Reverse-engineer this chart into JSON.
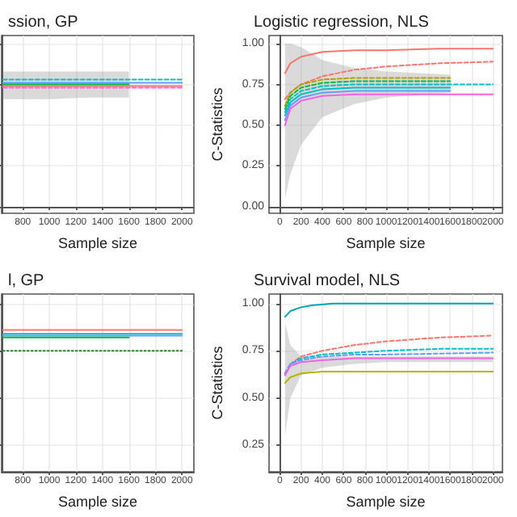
{
  "chart_data": [
    {
      "type": "line",
      "title": "ssion, GP",
      "xlabel": "Sample size",
      "xlim": [
        640,
        2090
      ],
      "xticks": [
        800,
        1000,
        1200,
        1400,
        1600,
        1800,
        2000
      ],
      "ylim": [
        -0.04,
        1.05
      ],
      "yticks": [
        0,
        0.25,
        0.5,
        0.75,
        1
      ],
      "tick_labels": "x",
      "grid": true,
      "series": [
        {
          "color": "#00bfc4",
          "line_style": "dashed",
          "x": [
            650,
            1000,
            1500,
            2000
          ],
          "values": [
            0.78,
            0.78,
            0.78,
            0.78
          ]
        },
        {
          "color": "#619cff",
          "x": [
            650,
            1000,
            1500,
            2000
          ],
          "values": [
            0.76,
            0.76,
            0.76,
            0.76
          ]
        },
        {
          "color": "#00ba38",
          "x": [
            650,
            1000,
            1300,
            1600
          ],
          "values": [
            0.75,
            0.75,
            0.75,
            0.75
          ],
          "lower": [
            0.66,
            0.66,
            0.67,
            0.67
          ],
          "upper": [
            0.83,
            0.83,
            0.83,
            0.83
          ]
        },
        {
          "color": "#f8766d",
          "x": [
            650,
            1000,
            1500,
            2000
          ],
          "values": [
            0.74,
            0.74,
            0.74,
            0.74
          ]
        },
        {
          "color": "#f564e3",
          "line_style": "dashed",
          "x": [
            650,
            1000,
            1500,
            2000
          ],
          "values": [
            0.73,
            0.73,
            0.73,
            0.73
          ]
        }
      ]
    },
    {
      "type": "line",
      "title": "Logistic regression, NLS",
      "xlabel": "Sample size",
      "ylabel": "C-Statistics",
      "xlim": [
        -100,
        2090
      ],
      "xticks": [
        0,
        200,
        400,
        600,
        800,
        1000,
        1200,
        1400,
        1600,
        1800,
        2000
      ],
      "ylim": [
        -0.04,
        1.05
      ],
      "yticks": [
        {
          "value": 0,
          "label": "0.00"
        },
        {
          "value": 0.25,
          "label": "0.25"
        },
        {
          "value": 0.5,
          "label": "0.50"
        },
        {
          "value": 0.75,
          "label": "0.75"
        },
        {
          "value": 1,
          "label": "1.00"
        }
      ],
      "grid": true,
      "series": [
        {
          "color": "#f8766d",
          "x": [
            50,
            100,
            200,
            400,
            700,
            1000,
            1500,
            2000
          ],
          "values": [
            0.82,
            0.88,
            0.92,
            0.95,
            0.96,
            0.96,
            0.97,
            0.97
          ]
        },
        {
          "color": "#f8766d",
          "line_style": "dashed",
          "x": [
            50,
            100,
            200,
            400,
            700,
            1000,
            1500,
            2000
          ],
          "values": [
            0.66,
            0.7,
            0.75,
            0.8,
            0.84,
            0.86,
            0.88,
            0.89
          ]
        },
        {
          "color": "#b79f00",
          "line_style": "dashed",
          "x": [
            50,
            100,
            200,
            400,
            700,
            1000,
            1600
          ],
          "values": [
            0.62,
            0.7,
            0.75,
            0.78,
            0.79,
            0.79,
            0.79
          ],
          "lower": [
            0.05,
            0.2,
            0.38,
            0.55,
            0.63,
            0.67,
            0.7
          ],
          "upper": [
            1.0,
            1.0,
            0.98,
            0.9,
            0.85,
            0.83,
            0.81
          ]
        },
        {
          "color": "#00ba38",
          "line_style": "dashed",
          "x": [
            50,
            100,
            200,
            400,
            700,
            1000,
            1600
          ],
          "values": [
            0.6,
            0.68,
            0.73,
            0.76,
            0.77,
            0.77,
            0.77
          ]
        },
        {
          "color": "#00bfc4",
          "line_style": "dashed",
          "x": [
            50,
            100,
            200,
            400,
            700,
            1000,
            2000
          ],
          "values": [
            0.58,
            0.66,
            0.71,
            0.74,
            0.75,
            0.75,
            0.75
          ]
        },
        {
          "color": "#00bfc4",
          "x": [
            50,
            100,
            200,
            400,
            700,
            1000,
            1600
          ],
          "values": [
            0.56,
            0.64,
            0.69,
            0.72,
            0.73,
            0.73,
            0.73
          ]
        },
        {
          "color": "#619cff",
          "x": [
            50,
            100,
            200,
            400,
            700,
            1000,
            1600
          ],
          "values": [
            0.53,
            0.62,
            0.67,
            0.7,
            0.71,
            0.71,
            0.71
          ]
        },
        {
          "color": "#f564e3",
          "x": [
            50,
            100,
            200,
            400,
            700,
            1000,
            2000
          ],
          "values": [
            0.5,
            0.6,
            0.65,
            0.68,
            0.69,
            0.69,
            0.69
          ]
        }
      ]
    },
    {
      "type": "line",
      "title": "l, GP",
      "xlabel": "Sample size",
      "xlim": [
        640,
        2090
      ],
      "xticks": [
        800,
        1000,
        1200,
        1400,
        1600,
        1800,
        2000
      ],
      "ylim": [
        0.11,
        1.05
      ],
      "yticks": [
        0.25,
        0.5,
        0.75,
        1
      ],
      "tick_labels": "x",
      "grid": true,
      "series": [
        {
          "color": "#f8766d",
          "x": [
            650,
            1000,
            1500,
            2000
          ],
          "values": [
            0.86,
            0.86,
            0.86,
            0.86
          ]
        },
        {
          "color": "#00bfc4",
          "x": [
            650,
            1000,
            1500,
            2000
          ],
          "values": [
            0.84,
            0.84,
            0.84,
            0.84
          ]
        },
        {
          "color": "#619cff",
          "x": [
            650,
            1000,
            1500,
            2000
          ],
          "values": [
            0.83,
            0.83,
            0.83,
            0.83
          ]
        },
        {
          "color": "#00ba38",
          "x": [
            650,
            1000,
            1500,
            1600
          ],
          "values": [
            0.82,
            0.82,
            0.82,
            0.82
          ]
        },
        {
          "color": "#3a7d3a",
          "line_style": "dotted",
          "x": [
            650,
            1000,
            1500,
            2000
          ],
          "values": [
            0.75,
            0.75,
            0.75,
            0.75
          ]
        }
      ]
    },
    {
      "type": "line",
      "title": "Survival model, NLS",
      "xlabel": "Sample size",
      "ylabel": "C-Statistics",
      "xlim": [
        -100,
        2090
      ],
      "xticks": [
        0,
        200,
        400,
        600,
        800,
        1000,
        1200,
        1400,
        1600,
        1800,
        2000
      ],
      "ylim": [
        0.11,
        1.05
      ],
      "yticks": [
        {
          "value": 0.25,
          "label": "0.25"
        },
        {
          "value": 0.5,
          "label": "0.50"
        },
        {
          "value": 0.75,
          "label": "0.75"
        },
        {
          "value": 1,
          "label": "1.00"
        }
      ],
      "grid": true,
      "series": [
        {
          "color": "#00a5b0",
          "x": [
            50,
            100,
            200,
            300,
            500,
            1000,
            2000
          ],
          "values": [
            0.93,
            0.96,
            0.98,
            0.99,
            1.0,
            1.0,
            1.0
          ]
        },
        {
          "color": "#f8766d",
          "line_style": "dashed",
          "x": [
            100,
            200,
            400,
            700,
            1000,
            1500,
            2000
          ],
          "values": [
            0.68,
            0.72,
            0.75,
            0.78,
            0.8,
            0.82,
            0.83
          ]
        },
        {
          "color": "#00bfc4",
          "line_style": "dashed",
          "x": [
            50,
            100,
            200,
            400,
            700,
            1000,
            1500,
            2000
          ],
          "values": [
            0.63,
            0.68,
            0.71,
            0.73,
            0.74,
            0.75,
            0.76,
            0.76
          ]
        },
        {
          "color": "#619cff",
          "line_style": "dashed",
          "x": [
            50,
            100,
            200,
            400,
            700,
            1000,
            2000
          ],
          "values": [
            0.63,
            0.68,
            0.7,
            0.72,
            0.73,
            0.73,
            0.74
          ]
        },
        {
          "color": "#f564e3",
          "x": [
            50,
            100,
            200,
            400,
            700,
            1000,
            2000
          ],
          "values": [
            0.62,
            0.67,
            0.69,
            0.7,
            0.71,
            0.71,
            0.71
          ],
          "lower": [
            0.3,
            0.5,
            0.62,
            0.66,
            0.68,
            0.69,
            0.69
          ],
          "upper": [
            0.9,
            0.78,
            0.72,
            0.72,
            0.72,
            0.72,
            0.72
          ]
        },
        {
          "color": "#b5b500",
          "x": [
            50,
            100,
            200,
            400,
            1000,
            2000
          ],
          "values": [
            0.58,
            0.61,
            0.63,
            0.64,
            0.64,
            0.64
          ]
        }
      ]
    }
  ]
}
